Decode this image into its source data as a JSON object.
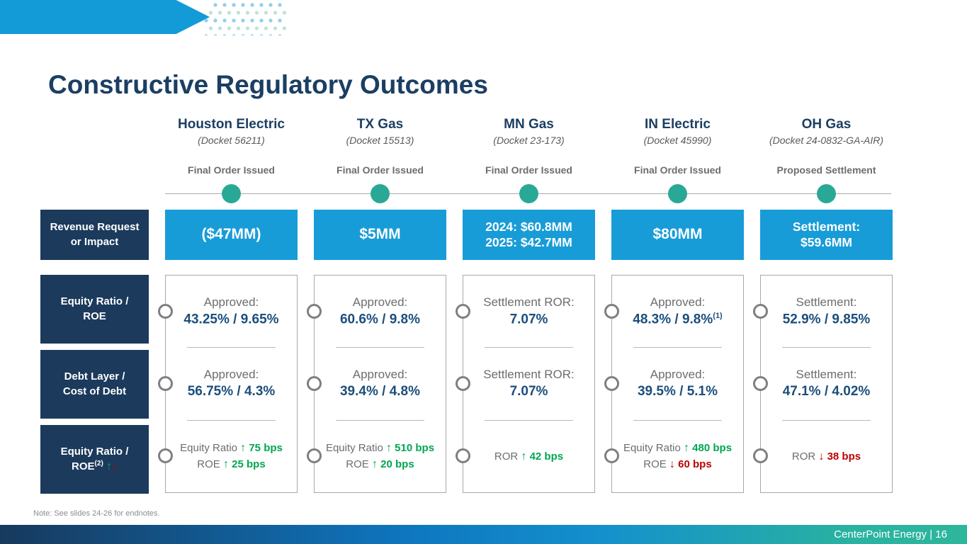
{
  "slide": {
    "title": "Constructive Regulatory Outcomes",
    "note": "Note: See slides 24-26 for endnotes.",
    "footer": "CenterPoint Energy | 16"
  },
  "colors": {
    "navy": "#1b3a5c",
    "accent_blue": "#189cd8",
    "teal_dot": "#2aa896",
    "green_up": "#00a651",
    "red_down": "#c00000",
    "gray_text": "#6b6d70"
  },
  "row_labels": {
    "revenue": [
      "Revenue Request",
      "or Impact"
    ],
    "equity": [
      "Equity Ratio /",
      "ROE"
    ],
    "debt": [
      "Debt Layer /",
      "Cost of Debt"
    ],
    "change": [
      "Equity Ratio /",
      "ROE"
    ],
    "change_sup": "(2)",
    "change_up_arrow": "↑",
    "change_down_arrow": "↓"
  },
  "columns": [
    {
      "name": "Houston Electric",
      "docket": "(Docket 56211)",
      "status": "Final Order Issued",
      "revenue_lines": [
        "($47MM)"
      ],
      "equity_label": "Approved:",
      "equity_value": "43.25% / 9.65%",
      "equity_sup": "",
      "debt_label": "Approved:",
      "debt_value": "56.75% / 4.3%",
      "changes": [
        {
          "prefix": "Equity Ratio",
          "arrow": "↑",
          "value": "75 bps"
        },
        {
          "prefix": "ROE",
          "arrow": "↑",
          "value": "25 bps"
        }
      ]
    },
    {
      "name": "TX Gas",
      "docket": "(Docket 15513)",
      "status": "Final Order Issued",
      "revenue_lines": [
        "$5MM"
      ],
      "equity_label": "Approved:",
      "equity_value": "60.6% / 9.8%",
      "equity_sup": "",
      "debt_label": "Approved:",
      "debt_value": "39.4% / 4.8%",
      "changes": [
        {
          "prefix": "Equity Ratio",
          "arrow": "↑",
          "value": "510 bps"
        },
        {
          "prefix": "ROE",
          "arrow": "↑",
          "value": "20 bps"
        }
      ]
    },
    {
      "name": "MN Gas",
      "docket": "(Docket 23-173)",
      "status": "Final Order Issued",
      "revenue_lines": [
        "2024: $60.8MM",
        "2025: $42.7MM"
      ],
      "equity_label": "Settlement ROR:",
      "equity_value": "7.07%",
      "equity_sup": "",
      "debt_label": "Settlement ROR:",
      "debt_value": "7.07%",
      "changes": [
        {
          "prefix": "ROR",
          "arrow": "↑",
          "value": "42 bps"
        }
      ]
    },
    {
      "name": "IN Electric",
      "docket": "(Docket 45990)",
      "status": "Final Order Issued",
      "revenue_lines": [
        "$80MM"
      ],
      "equity_label": "Approved:",
      "equity_value": "48.3% / 9.8%",
      "equity_sup": "(1)",
      "debt_label": "Approved:",
      "debt_value": "39.5% / 5.1%",
      "changes": [
        {
          "prefix": "Equity Ratio",
          "arrow": "↑",
          "value": "480 bps"
        },
        {
          "prefix": "ROE",
          "arrow": "↓",
          "value": "60 bps"
        }
      ]
    },
    {
      "name": "OH Gas",
      "docket": "(Docket 24-0832-GA-AIR)",
      "status": "Proposed Settlement",
      "revenue_lines": [
        "Settlement:",
        "$59.6MM"
      ],
      "equity_label": "Settlement:",
      "equity_value": "52.9% / 9.85%",
      "equity_sup": "",
      "debt_label": "Settlement:",
      "debt_value": "47.1% / 4.02%",
      "changes": [
        {
          "prefix": "ROR",
          "arrow": "↓",
          "value": "38 bps"
        }
      ]
    }
  ]
}
